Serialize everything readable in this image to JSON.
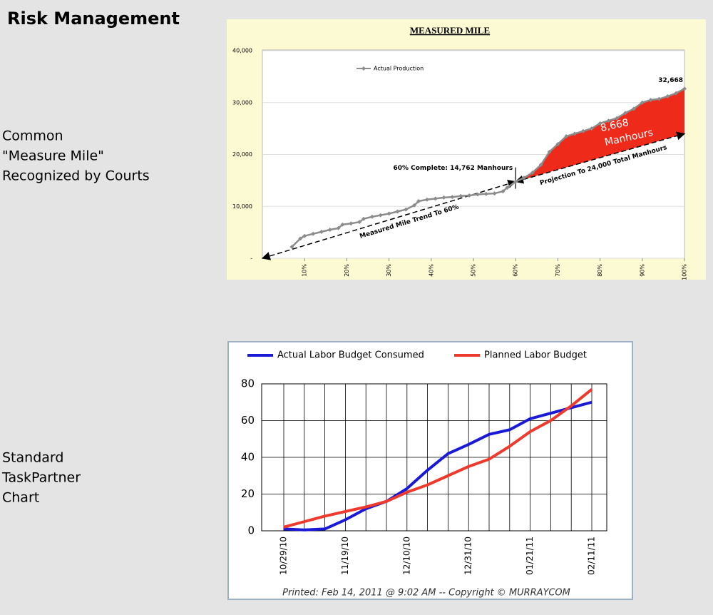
{
  "title": "Risk Management",
  "sections": [
    {
      "label_lines": [
        "Common",
        "\"Measure Mile\"",
        "Recognized by Courts"
      ]
    },
    {
      "label_lines": [
        "Standard",
        "TaskPartner",
        "Chart"
      ]
    }
  ],
  "chart_data": [
    {
      "type": "line",
      "title": "MEASURED MILE",
      "x": [
        7,
        9,
        10,
        12,
        14,
        16,
        18,
        19,
        21,
        23,
        24,
        26,
        28,
        30,
        32,
        34,
        36,
        37,
        39,
        41,
        43,
        45,
        47,
        49,
        51,
        53,
        55,
        57,
        58,
        60,
        62,
        64,
        66,
        68,
        70,
        72,
        74,
        76,
        78,
        80,
        82,
        84,
        86,
        88,
        90,
        92,
        94,
        96,
        98,
        100
      ],
      "series": [
        {
          "name": "Actual Production",
          "color": "#8c8c8c",
          "values": [
            2200,
            3800,
            4300,
            4700,
            5100,
            5500,
            5800,
            6500,
            6700,
            7000,
            7600,
            8000,
            8300,
            8600,
            9000,
            9400,
            10200,
            11000,
            11300,
            11500,
            11700,
            11800,
            12000,
            12100,
            12300,
            12400,
            12500,
            12900,
            13600,
            14762,
            15500,
            16500,
            18000,
            20500,
            22000,
            23500,
            24000,
            24500,
            25000,
            26000,
            26500,
            27000,
            28000,
            28800,
            30000,
            30500,
            30700,
            31200,
            31800,
            32668
          ],
          "value_labels": [
            null,
            null,
            null,
            null,
            null,
            null,
            null,
            null,
            null,
            null,
            null,
            null,
            null,
            null,
            null,
            null,
            null,
            null,
            null,
            null,
            null,
            null,
            null,
            null,
            null,
            null,
            null,
            null,
            null,
            null,
            null,
            null,
            null,
            null,
            null,
            null,
            null,
            null,
            null,
            null,
            null,
            null,
            null,
            null,
            null,
            null,
            null,
            null,
            null,
            "32,668"
          ]
        }
      ],
      "trend_lines": [
        {
          "label": "Measured Mile Trend To 60%",
          "x": [
            0,
            60
          ],
          "y": [
            0,
            14762
          ]
        },
        {
          "label": "Projection To 24,000 Total Manhours",
          "x": [
            60,
            100
          ],
          "y": [
            14762,
            24000
          ]
        }
      ],
      "annotations": [
        "60% Complete: 14,762 Manhours",
        "8,668",
        "Manhours"
      ],
      "area_color": "#ee2a1b",
      "xlim": [
        0,
        100
      ],
      "xticks": [
        {
          "value": 10,
          "label": "10%"
        },
        {
          "value": 20,
          "label": "20%"
        },
        {
          "value": 30,
          "label": "30%"
        },
        {
          "value": 40,
          "label": "40%"
        },
        {
          "value": 50,
          "label": "50%"
        },
        {
          "value": 60,
          "label": "60%"
        },
        {
          "value": 70,
          "label": "70%"
        },
        {
          "value": 80,
          "label": "80%"
        },
        {
          "value": 90,
          "label": "90%"
        },
        {
          "value": 100,
          "label": "100%"
        }
      ],
      "ylim": [
        0,
        40000
      ],
      "yticks": [
        {
          "value": 0,
          "label": "-"
        },
        {
          "value": 10000,
          "label": "10,000"
        },
        {
          "value": 20000,
          "label": "20,000"
        },
        {
          "value": 30000,
          "label": "30,000"
        },
        {
          "value": 40000,
          "label": "40,000"
        }
      ],
      "grid": true,
      "legend": "upper left"
    },
    {
      "type": "line",
      "categories": [
        "10/29/10",
        null,
        null,
        "11/19/10",
        null,
        null,
        "12/10/10",
        null,
        null,
        "12/31/10",
        null,
        null,
        "01/21/11",
        null,
        null,
        "02/11/11"
      ],
      "series": [
        {
          "name": "Actual Labor Budget Consumed",
          "color": "#1a1ad6",
          "values": [
            1,
            0.5,
            1,
            6,
            12,
            16,
            23,
            33,
            42,
            47,
            52.5,
            55,
            61,
            64,
            67,
            70
          ]
        },
        {
          "name": "Planned Labor Budget",
          "color": "#ee3a2c",
          "values": [
            2,
            5,
            8,
            10.5,
            13,
            16,
            21,
            25,
            30,
            35,
            39,
            46,
            54,
            60,
            68,
            77
          ]
        }
      ],
      "ylim": [
        0,
        80
      ],
      "yticks": [
        0,
        20,
        40,
        60,
        80
      ],
      "grid": true,
      "legend": "top",
      "caption": "Printed: Feb 14, 2011 @ 9:02 AM -- Copyright © MURRAYCOM"
    }
  ]
}
